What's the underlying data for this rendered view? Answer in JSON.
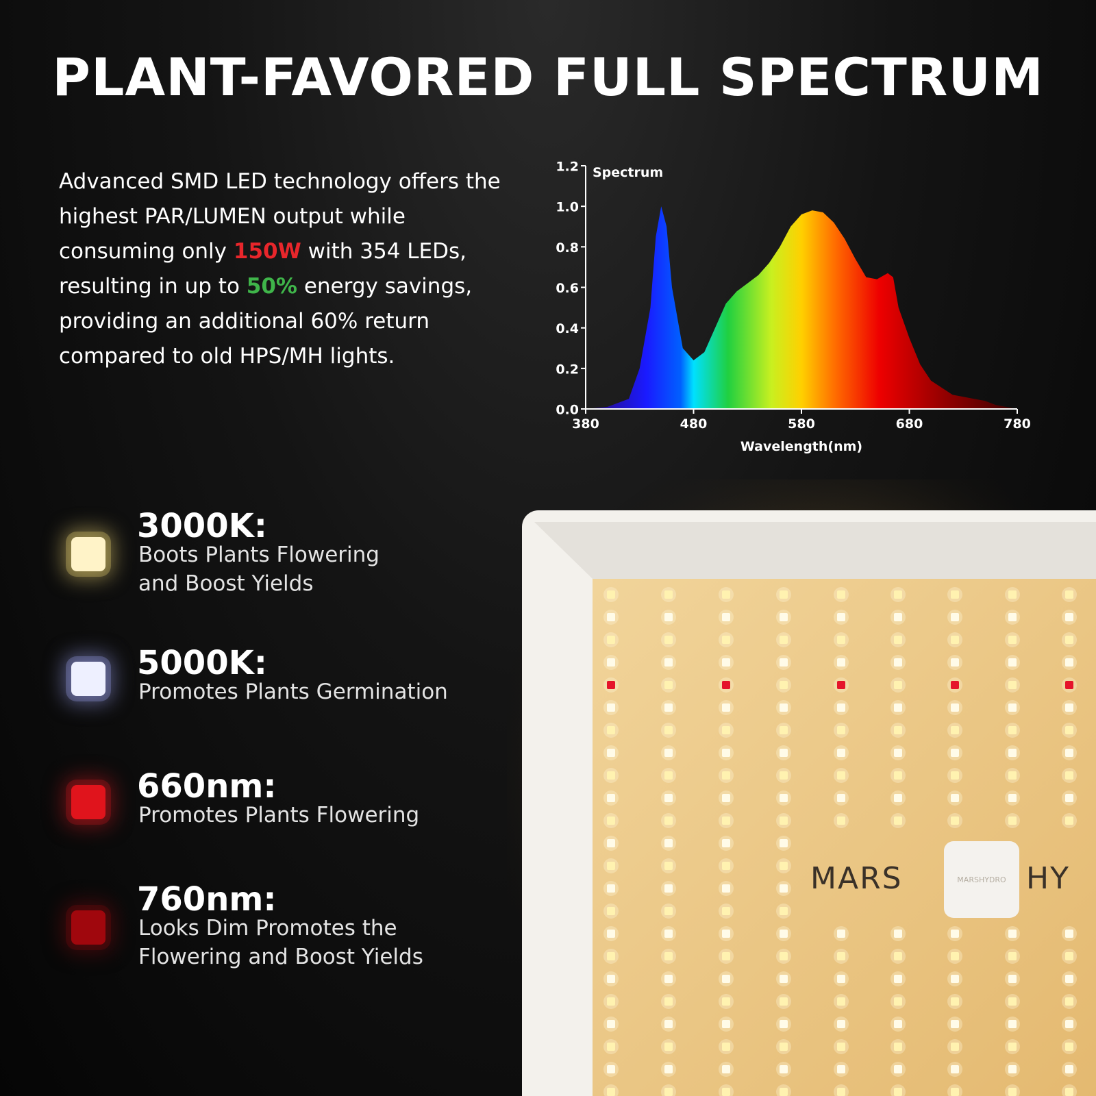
{
  "header": {
    "title": "PLANT-FAVORED FULL SPECTRUM"
  },
  "intro": {
    "segments": [
      {
        "text": "Advanced SMD LED technology offers the highest PAR/LUMEN output while consuming only ",
        "color": "#ffffff"
      },
      {
        "text": "150W",
        "color": "#e8262b"
      },
      {
        "text": " with 354 LEDs, resulting in up to ",
        "color": "#ffffff"
      },
      {
        "text": "50%",
        "color": "#3fb54a"
      },
      {
        "text": " energy savings, providing an additional 60% return compared to old HPS/MH lights.",
        "color": "#ffffff"
      }
    ]
  },
  "chart_data": {
    "type": "area",
    "title": "Spectrum",
    "x_label": "Wavelength(nm)",
    "x": [
      380,
      400,
      420,
      430,
      440,
      445,
      450,
      455,
      460,
      470,
      480,
      490,
      500,
      510,
      520,
      530,
      540,
      550,
      560,
      570,
      580,
      590,
      600,
      610,
      620,
      630,
      640,
      650,
      660,
      665,
      670,
      680,
      690,
      700,
      720,
      740,
      750,
      760,
      780
    ],
    "values": [
      0,
      0.01,
      0.05,
      0.2,
      0.5,
      0.85,
      1.0,
      0.9,
      0.6,
      0.3,
      0.24,
      0.28,
      0.4,
      0.52,
      0.58,
      0.62,
      0.66,
      0.72,
      0.8,
      0.9,
      0.96,
      0.98,
      0.97,
      0.92,
      0.84,
      0.74,
      0.65,
      0.64,
      0.67,
      0.65,
      0.5,
      0.35,
      0.22,
      0.14,
      0.07,
      0.05,
      0.04,
      0.02,
      0
    ],
    "xlim": [
      380,
      780
    ],
    "xticks": [
      380,
      480,
      580,
      680,
      780
    ],
    "ylim": [
      0,
      1.2
    ],
    "yticks": [
      {
        "value": 0,
        "label": "0.0"
      },
      0.2,
      0.4,
      0.6,
      0.8,
      {
        "value": 1,
        "label": "1.0"
      },
      1.2
    ]
  },
  "features": [
    {
      "title": "3000K:",
      "lines": [
        "Boots Plants Flowering",
        "and Boost Yields"
      ],
      "color": "#fff3c8",
      "glow": "#d9c36a"
    },
    {
      "title": "5000K:",
      "lines": [
        "Promotes Plants Germination"
      ],
      "color": "#eef0ff",
      "glow": "#8c93d8"
    },
    {
      "title": "660nm:",
      "lines": [
        "Promotes Plants Flowering"
      ],
      "color": "#e0141c",
      "glow": "#b0161c"
    },
    {
      "title": "760nm:",
      "lines": [
        "Looks Dim Promotes the",
        "Flowering and Boost Yields"
      ],
      "color": "#a0070d",
      "glow": "#6e0a0d"
    }
  ],
  "panel": {
    "brand_left": "MARS",
    "badge": "MARSHYDRO",
    "brand_right": "HY"
  }
}
